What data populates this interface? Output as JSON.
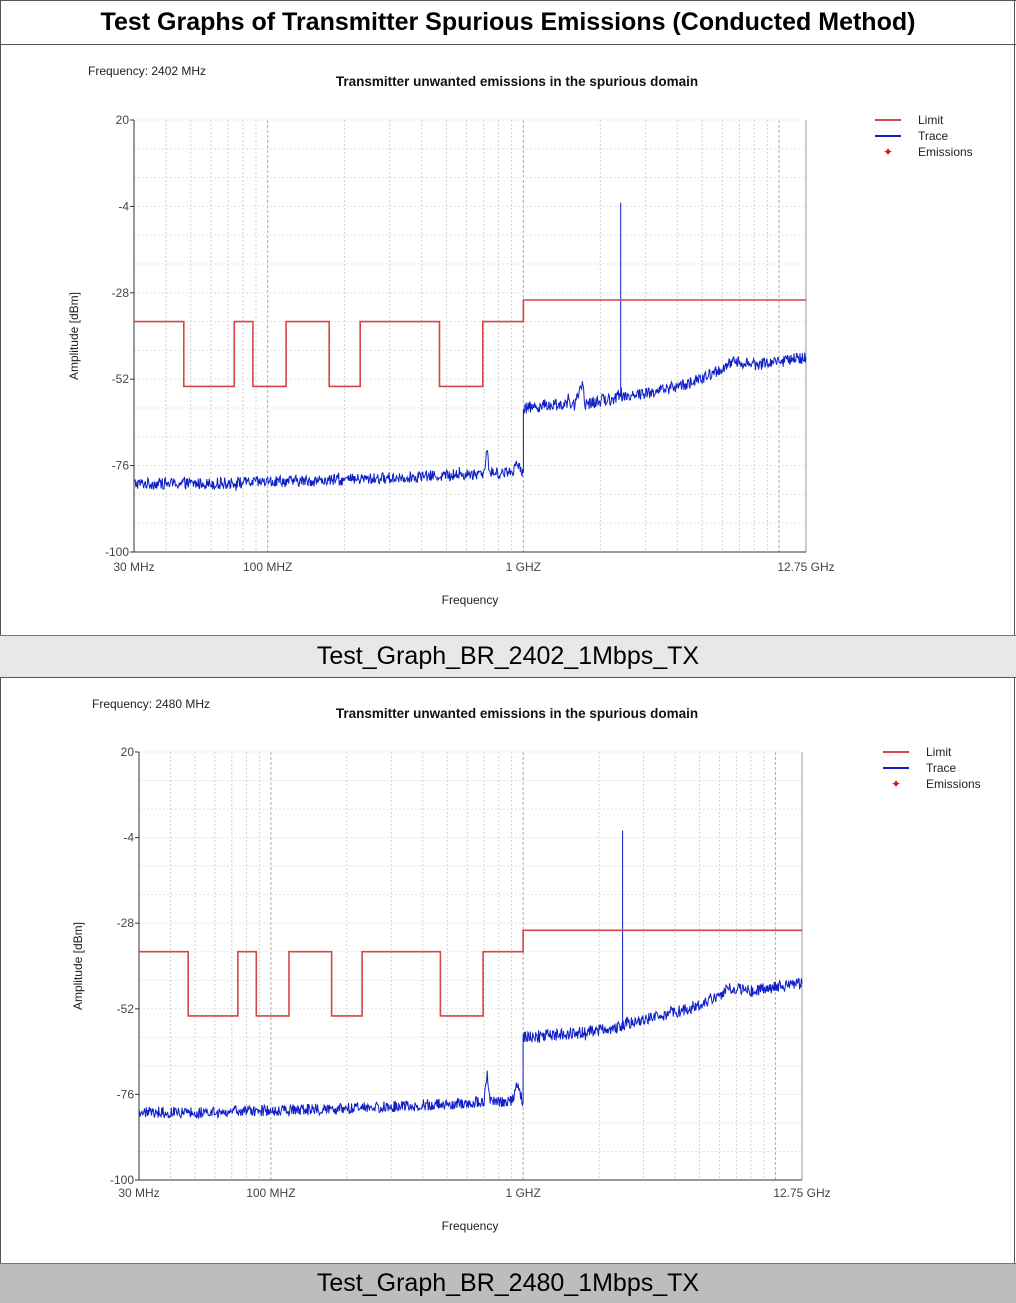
{
  "header": {
    "title": "Test Graphs of Transmitter Spurious Emissions (Conducted Method)"
  },
  "colors": {
    "limit": "#d64545",
    "trace": "#1020c8",
    "emissions": "#e01010",
    "grid": "#d0d0d0"
  },
  "chart_data": [
    {
      "type": "line",
      "caption": "Test_Graph_BR_2402_1Mbps_TX",
      "frequency_label": "Frequency: 2402 MHz",
      "title": "Transmitter unwanted emissions in the spurious domain",
      "xlabel": "Frequency",
      "ylabel": "Amplitude [dBm]",
      "x_scale": "log",
      "xlim": [
        30,
        12750
      ],
      "ylim": [
        -100,
        20
      ],
      "y_ticks": [
        "20",
        "-4",
        "-28",
        "-52",
        "-76",
        "-100"
      ],
      "x_ticks": [
        {
          "value": 30,
          "label": "30 MHz"
        },
        {
          "value": 100,
          "label": "100 MHZ"
        },
        {
          "value": 1000,
          "label": "1 GHZ"
        },
        {
          "value": 12750,
          "label": "12.75 GHz"
        }
      ],
      "legend": [
        "Limit",
        "Trace",
        "Emissions"
      ],
      "legend_position": "right",
      "grid": true,
      "series": [
        {
          "name": "Limit",
          "x": [
            30,
            47,
            47,
            74,
            74,
            87.5,
            87.5,
            118,
            118,
            174,
            174,
            230,
            230,
            470,
            470,
            694,
            694,
            1000,
            1000,
            12750
          ],
          "y": [
            -36,
            -36,
            -54,
            -54,
            -36,
            -36,
            -54,
            -54,
            -36,
            -36,
            -54,
            -54,
            -36,
            -36,
            -54,
            -54,
            -36,
            -36,
            -30,
            -30
          ]
        },
        {
          "name": "Trace",
          "x": [
            30,
            60,
            100,
            200,
            400,
            600,
            700,
            720,
            740,
            800,
            900,
            950,
            1000,
            1000,
            1300,
            1600,
            1700,
            1750,
            2000,
            2402,
            2402,
            2402,
            2500,
            3000,
            4000,
            5000,
            6000,
            6800,
            8000,
            10000,
            12750
          ],
          "y": [
            -81,
            -81,
            -80.5,
            -80,
            -79,
            -78.5,
            -78,
            -72,
            -78,
            -78,
            -78,
            -75,
            -78,
            -60,
            -59,
            -59,
            -53,
            -59,
            -58,
            -57,
            -3,
            -57,
            -56.5,
            -56,
            -54,
            -52,
            -49,
            -47,
            -48,
            -47,
            -46
          ]
        },
        {
          "name": "Emissions",
          "x": [],
          "y": []
        }
      ]
    },
    {
      "type": "line",
      "caption": "Test_Graph_BR_2480_1Mbps_TX",
      "frequency_label": "Frequency: 2480 MHz",
      "title": "Transmitter unwanted emissions in the spurious domain",
      "xlabel": "Frequency",
      "ylabel": "Amplitude [dBm]",
      "x_scale": "log",
      "xlim": [
        30,
        12750
      ],
      "ylim": [
        -100,
        20
      ],
      "y_ticks": [
        "20",
        "-4",
        "-28",
        "-52",
        "-76",
        "-100"
      ],
      "x_ticks": [
        {
          "value": 30,
          "label": "30 MHz"
        },
        {
          "value": 100,
          "label": "100 MHZ"
        },
        {
          "value": 1000,
          "label": "1 GHZ"
        },
        {
          "value": 12750,
          "label": "12.75 GHz"
        }
      ],
      "legend": [
        "Limit",
        "Trace",
        "Emissions"
      ],
      "legend_position": "right",
      "grid": true,
      "series": [
        {
          "name": "Limit",
          "x": [
            30,
            47,
            47,
            74,
            74,
            87.5,
            87.5,
            118,
            118,
            174,
            174,
            230,
            230,
            470,
            470,
            694,
            694,
            1000,
            1000,
            12750
          ],
          "y": [
            -36,
            -36,
            -54,
            -54,
            -36,
            -36,
            -54,
            -54,
            -36,
            -36,
            -54,
            -54,
            -36,
            -36,
            -54,
            -54,
            -36,
            -36,
            -30,
            -30
          ]
        },
        {
          "name": "Trace",
          "x": [
            30,
            60,
            100,
            200,
            400,
            600,
            700,
            720,
            740,
            800,
            900,
            950,
            1000,
            1000,
            1500,
            2000,
            2480,
            2480,
            2480,
            2600,
            3000,
            4000,
            5000,
            6000,
            6800,
            8000,
            10000,
            12750
          ],
          "y": [
            -81,
            -81,
            -80.5,
            -80,
            -79,
            -78.5,
            -78,
            -70,
            -78,
            -78,
            -78,
            -74,
            -78,
            -60,
            -59,
            -58,
            -57,
            -2,
            -57,
            -56,
            -55,
            -53,
            -51,
            -48,
            -46,
            -47,
            -46,
            -45
          ]
        },
        {
          "name": "Emissions",
          "x": [],
          "y": []
        }
      ]
    }
  ]
}
